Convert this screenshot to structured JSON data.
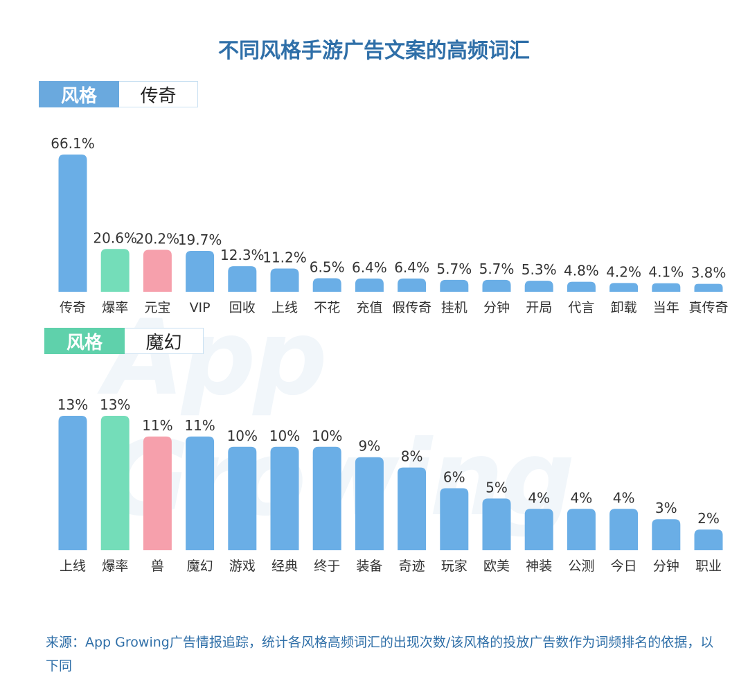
{
  "title": "不同风格手游广告文案的高频词汇",
  "watermark": "App Growing",
  "chart_data": [
    {
      "type": "bar",
      "style_label": "风格",
      "style_value": "传奇",
      "categories": [
        "传奇",
        "爆率",
        "元宝",
        "VIP",
        "回收",
        "上线",
        "不花",
        "充值",
        "假传奇",
        "挂机",
        "分钟",
        "开局",
        "代言",
        "卸载",
        "当年",
        "真传奇"
      ],
      "values": [
        66.1,
        20.6,
        20.2,
        19.7,
        12.3,
        11.2,
        6.5,
        6.4,
        6.4,
        5.7,
        5.7,
        5.3,
        4.8,
        4.2,
        4.1,
        3.8
      ],
      "labels": [
        "66.1%",
        "20.6%",
        "20.2%",
        "19.7%",
        "12.3%",
        "11.2%",
        "6.5%",
        "6.4%",
        "6.4%",
        "5.7%",
        "5.7%",
        "5.3%",
        "4.8%",
        "4.2%",
        "4.1%",
        "3.8%"
      ],
      "colors": [
        "#6aaee6",
        "#74ddb9",
        "#f6a0ac",
        "#6aaee6",
        "#6aaee6",
        "#6aaee6",
        "#6aaee6",
        "#6aaee6",
        "#6aaee6",
        "#6aaee6",
        "#6aaee6",
        "#6aaee6",
        "#6aaee6",
        "#6aaee6",
        "#6aaee6",
        "#6aaee6"
      ],
      "ylim": [
        0,
        66.1
      ]
    },
    {
      "type": "bar",
      "style_label": "风格",
      "style_value": "魔幻",
      "categories": [
        "上线",
        "爆率",
        "兽",
        "魔幻",
        "游戏",
        "经典",
        "终于",
        "装备",
        "奇迹",
        "玩家",
        "欧美",
        "神装",
        "公测",
        "今日",
        "分钟",
        "职业"
      ],
      "values": [
        13,
        13,
        11,
        11,
        10,
        10,
        10,
        9,
        8,
        6,
        5,
        4,
        4,
        4,
        3,
        2
      ],
      "labels": [
        "13%",
        "13%",
        "11%",
        "11%",
        "10%",
        "10%",
        "10%",
        "9%",
        "8%",
        "6%",
        "5%",
        "4%",
        "4%",
        "4%",
        "3%",
        "2%"
      ],
      "colors": [
        "#6aaee6",
        "#74ddb9",
        "#f6a0ac",
        "#6aaee6",
        "#6aaee6",
        "#6aaee6",
        "#6aaee6",
        "#6aaee6",
        "#6aaee6",
        "#6aaee6",
        "#6aaee6",
        "#6aaee6",
        "#6aaee6",
        "#6aaee6",
        "#6aaee6",
        "#6aaee6"
      ],
      "ylim": [
        0,
        13
      ]
    }
  ],
  "source": "来源：App Growing广告情报追踪，统计各风格高频词汇的出现次数/该风格的投放广告数作为词频排名的依据，以下同"
}
